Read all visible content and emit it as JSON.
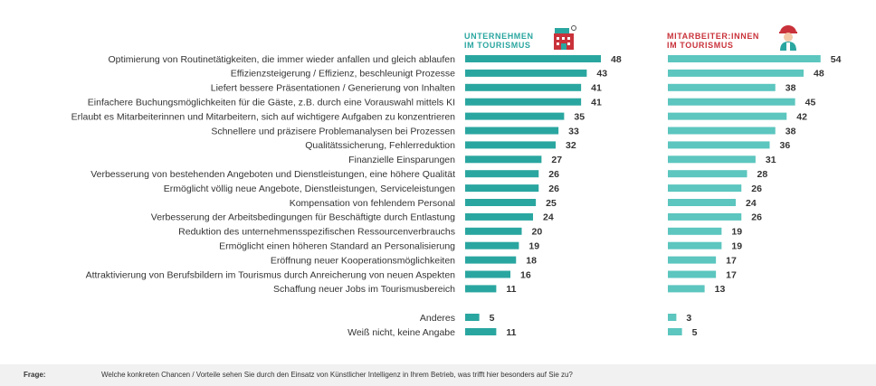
{
  "chart_data": {
    "type": "bar",
    "orientation": "horizontal",
    "categories": [
      "Optimierung von Routinetätigkeiten, die immer wieder anfallen und gleich ablaufen",
      "Effizienzsteigerung / Effizienz, beschleunigt Prozesse",
      "Liefert bessere Präsentationen / Generierung von Inhalten",
      "Einfachere Buchungsmöglichkeiten für die Gäste, z.B. durch eine Vorauswahl mittels KI",
      "Erlaubt es Mitarbeiterinnen und Mitarbeitern, sich auf wichtigere Aufgaben zu konzentrieren",
      "Schnellere und präzisere Problemanalysen bei Prozessen",
      "Qualitätssicherung, Fehlerreduktion",
      "Finanzielle Einsparungen",
      "Verbesserung von bestehenden Angeboten und Dienstleistungen, eine höhere Qualität",
      "Ermöglicht völlig neue Angebote, Dienstleistungen, Serviceleistungen",
      "Kompensation von fehlendem Personal",
      "Verbesserung der Arbeitsbedingungen für Beschäftigte durch Entlastung",
      "Reduktion des unternehmensspezifischen Ressourcenverbrauchs",
      "Ermöglicht einen höheren Standard an Personalisierung",
      "Eröffnung neuer Kooperationsmöglichkeiten",
      "Attraktivierung von Berufsbildern im Tourismus durch Anreicherung von neuen Aspekten",
      "Schaffung neuer Jobs im Tourismusbereich",
      "Anderes",
      "Weiß nicht, keine Angabe"
    ],
    "series": [
      {
        "name_line1": "UNTERNEHMEN",
        "name_line2": "IM TOURISMUS",
        "icon": "hotel-building-icon",
        "color": "#2aa6a0",
        "values": [
          48,
          43,
          41,
          41,
          35,
          33,
          32,
          27,
          26,
          26,
          25,
          24,
          20,
          19,
          18,
          16,
          11,
          5,
          11
        ]
      },
      {
        "name_line1": "MITARBEITER:INNEN",
        "name_line2": "IM TOURISMUS",
        "icon": "worker-icon",
        "color": "#5cc6bf",
        "values": [
          54,
          48,
          38,
          45,
          42,
          38,
          36,
          31,
          28,
          26,
          24,
          26,
          19,
          19,
          17,
          17,
          13,
          3,
          5
        ]
      }
    ],
    "header_colors": [
      "#2aa6a0",
      "#c9323a"
    ],
    "value_max": 60,
    "xlabel": "",
    "ylabel": "",
    "grid": false,
    "legend": "top"
  },
  "footer": {
    "label": "Frage:",
    "text": "Welche konkreten Chancen / Vorteile sehen Sie durch den Einsatz von Künstlicher Intelligenz in Ihrem Betrieb, was trifft hier besonders auf Sie zu?"
  }
}
